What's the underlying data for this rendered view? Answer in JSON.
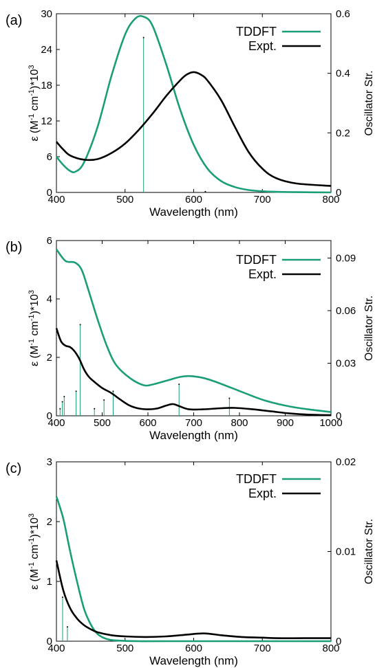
{
  "colors": {
    "tddft": "#1a9e77",
    "expt": "#000000",
    "axis": "#000000"
  },
  "chart_data": [
    {
      "type": "line",
      "panel_label": "(a)",
      "xlabel": "Wavelength (nm)",
      "ylabel_left": {
        "main": "ε (M",
        "sup1": "-1",
        "mid": " cm",
        "sup2": "-1",
        "tail": ")*10",
        "sup3": "3"
      },
      "ylabel_right": "Oscillator Str.",
      "xlim": [
        400,
        800
      ],
      "ylim_left": [
        0,
        30
      ],
      "ylim_right": [
        0,
        0.6
      ],
      "xticks": [
        400,
        500,
        600,
        700,
        800
      ],
      "yticks_left": [
        0,
        6,
        12,
        18,
        24,
        30
      ],
      "yticks_right": [
        0,
        0.2,
        0.4,
        0.6
      ],
      "ytick_labels_right": [
        "0",
        "0.2",
        "0.4",
        "0.6"
      ],
      "legend": [
        {
          "name": "TDDFT",
          "color_key": "tddft"
        },
        {
          "name": "Expt.",
          "color_key": "expt"
        }
      ],
      "series": [
        {
          "name": "TDDFT",
          "color_key": "tddft",
          "x": [
            400,
            410,
            420,
            428,
            440,
            460,
            480,
            500,
            515,
            527,
            540,
            560,
            580,
            600,
            620,
            640,
            660,
            680,
            700,
            720,
            750,
            800
          ],
          "y": [
            6.0,
            4.6,
            3.6,
            3.5,
            5.0,
            11.0,
            19.5,
            26.5,
            29.2,
            29.5,
            28.0,
            21.5,
            14.0,
            8.0,
            4.0,
            1.9,
            0.9,
            0.4,
            0.2,
            0.1,
            0.05,
            0.0
          ]
        },
        {
          "name": "Expt.",
          "color_key": "expt",
          "x": [
            400,
            410,
            420,
            440,
            460,
            480,
            500,
            520,
            540,
            560,
            580,
            590,
            600,
            610,
            620,
            640,
            660,
            680,
            700,
            720,
            750,
            800
          ],
          "y": [
            8.5,
            7.2,
            6.2,
            5.5,
            5.6,
            6.6,
            8.2,
            10.5,
            13.2,
            16.2,
            18.8,
            19.8,
            20.2,
            19.8,
            18.8,
            15.5,
            11.0,
            6.8,
            4.0,
            2.4,
            1.5,
            1.1
          ]
        }
      ],
      "sticks": [
        {
          "x": 527,
          "f": 0.52
        },
        {
          "x": 617,
          "f": 0.003
        }
      ]
    },
    {
      "type": "line",
      "panel_label": "(b)",
      "xlabel": "Wavelength (nm)",
      "ylabel_left": {
        "main": "ε (M",
        "sup1": "-1",
        "mid": " cm",
        "sup2": "-1",
        "tail": ")*10",
        "sup3": "3"
      },
      "ylabel_right": "Oscillator Str.",
      "xlim": [
        400,
        1000
      ],
      "ylim_left": [
        0,
        6
      ],
      "ylim_right": [
        0,
        0.1
      ],
      "xticks": [
        400,
        500,
        600,
        700,
        800,
        900,
        1000
      ],
      "yticks_left": [
        0,
        2,
        4,
        6
      ],
      "yticks_right": [
        0,
        0.03,
        0.06,
        0.09
      ],
      "ytick_labels_right": [
        "0",
        "0.03",
        "0.06",
        "0.09"
      ],
      "legend": [
        {
          "name": "TDDFT",
          "color_key": "tddft"
        },
        {
          "name": "Expt.",
          "color_key": "expt"
        }
      ],
      "series": [
        {
          "name": "TDDFT",
          "color_key": "tddft",
          "x": [
            400,
            420,
            440,
            455,
            470,
            490,
            510,
            530,
            560,
            590,
            610,
            640,
            670,
            690,
            720,
            750,
            800,
            850,
            900,
            950,
            1000
          ],
          "y": [
            5.7,
            5.3,
            5.25,
            5.0,
            4.3,
            3.3,
            2.4,
            1.75,
            1.3,
            1.05,
            1.07,
            1.2,
            1.33,
            1.36,
            1.3,
            1.15,
            0.85,
            0.55,
            0.35,
            0.22,
            0.13
          ]
        },
        {
          "name": "Expt.",
          "color_key": "expt",
          "x": [
            400,
            410,
            420,
            430,
            440,
            450,
            460,
            470,
            480,
            500,
            520,
            540,
            560,
            580,
            600,
            620,
            640,
            655,
            670,
            690,
            720,
            760,
            790,
            830,
            870,
            910,
            950,
            1000
          ],
          "y": [
            3.0,
            2.55,
            2.4,
            2.35,
            2.2,
            1.95,
            1.6,
            1.35,
            1.2,
            0.95,
            0.78,
            0.55,
            0.35,
            0.25,
            0.22,
            0.25,
            0.35,
            0.4,
            0.32,
            0.22,
            0.22,
            0.26,
            0.27,
            0.22,
            0.15,
            0.08,
            0.04,
            0.02
          ]
        }
      ],
      "sticks": [
        {
          "x": 408,
          "f": 0.004
        },
        {
          "x": 413,
          "f": 0.008
        },
        {
          "x": 417,
          "f": 0.011
        },
        {
          "x": 443,
          "f": 0.014
        },
        {
          "x": 452,
          "f": 0.052
        },
        {
          "x": 483,
          "f": 0.004
        },
        {
          "x": 504,
          "f": 0.009
        },
        {
          "x": 524,
          "f": 0.014
        },
        {
          "x": 668,
          "f": 0.018
        },
        {
          "x": 778,
          "f": 0.01
        }
      ]
    },
    {
      "type": "line",
      "panel_label": "(c)",
      "xlabel": "Wavelength (nm)",
      "ylabel_left": {
        "main": "ε (M",
        "sup1": "-1",
        "mid": " cm",
        "sup2": "-1",
        "tail": ")*10",
        "sup3": "3"
      },
      "ylabel_right": "Oscillator Str.",
      "xlim": [
        400,
        800
      ],
      "ylim_left": [
        0,
        3
      ],
      "ylim_right": [
        0,
        0.02
      ],
      "xticks": [
        400,
        500,
        600,
        700,
        800
      ],
      "yticks_left": [
        0,
        1,
        2,
        3
      ],
      "yticks_right": [
        0,
        0.01,
        0.02
      ],
      "ytick_labels_right": [
        "0",
        "0.01",
        "0.02"
      ],
      "legend": [
        {
          "name": "TDDFT",
          "color_key": "tddft"
        },
        {
          "name": "Expt.",
          "color_key": "expt"
        }
      ],
      "series": [
        {
          "name": "TDDFT",
          "color_key": "tddft",
          "x": [
            400,
            410,
            420,
            430,
            440,
            450,
            460,
            470,
            480,
            500,
            520,
            560,
            800
          ],
          "y": [
            2.42,
            2.05,
            1.5,
            1.0,
            0.55,
            0.28,
            0.12,
            0.05,
            0.02,
            0.005,
            0.0,
            0.0,
            0.0
          ]
        },
        {
          "name": "Expt.",
          "color_key": "expt",
          "x": [
            400,
            410,
            420,
            430,
            440,
            450,
            460,
            480,
            500,
            530,
            560,
            590,
            615,
            640,
            670,
            700,
            720,
            760,
            800
          ],
          "y": [
            1.35,
            0.85,
            0.55,
            0.38,
            0.27,
            0.2,
            0.15,
            0.1,
            0.08,
            0.07,
            0.08,
            0.11,
            0.13,
            0.1,
            0.07,
            0.06,
            0.05,
            0.05,
            0.05
          ]
        }
      ],
      "sticks": [
        {
          "x": 409,
          "f": 0.0049
        },
        {
          "x": 416,
          "f": 0.0016
        }
      ]
    }
  ]
}
